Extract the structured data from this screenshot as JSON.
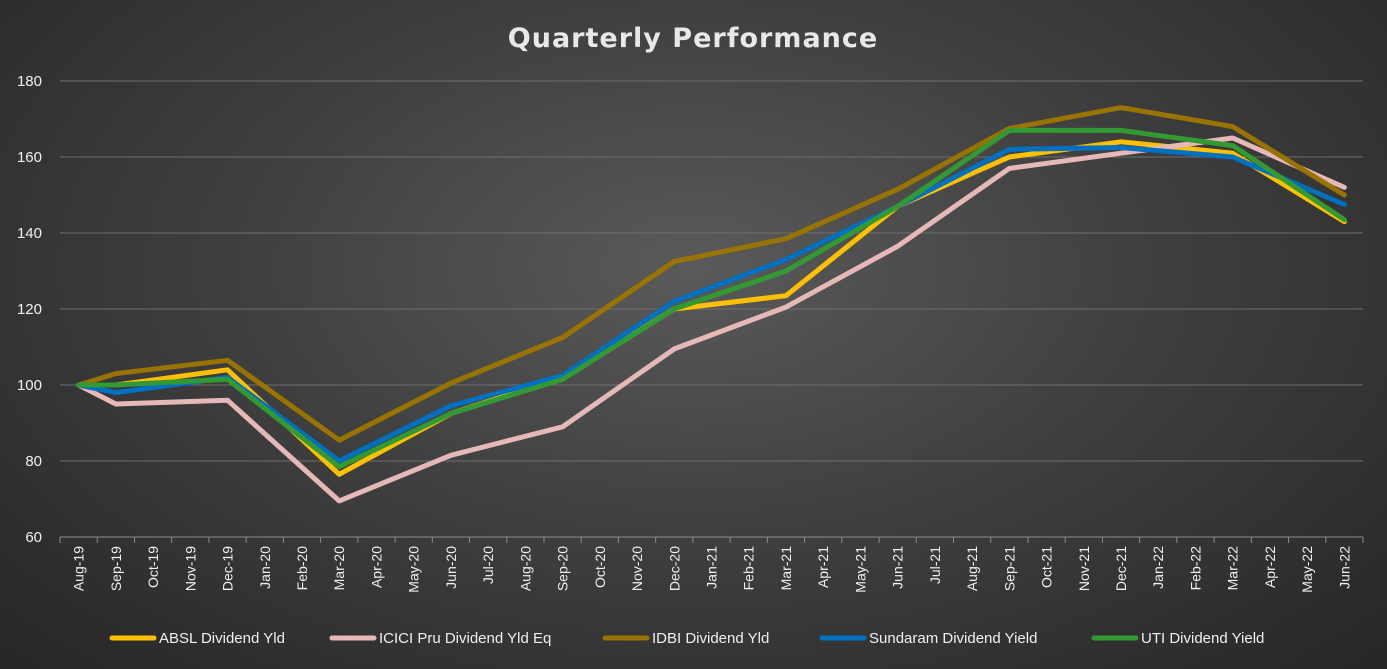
{
  "chart_data": {
    "type": "line",
    "title": "Quarterly Performance",
    "xlabel": "",
    "ylabel": "",
    "ylim": [
      60,
      180
    ],
    "yticks": [
      "60",
      "80",
      "100",
      "120",
      "140",
      "160",
      "180"
    ],
    "grid": true,
    "legend_position": "bottom",
    "categories": [
      "Aug-19",
      "Sep-19",
      "Oct-19",
      "Nov-19",
      "Dec-19",
      "Jan-20",
      "Feb-20",
      "Mar-20",
      "Apr-20",
      "May-20",
      "Jun-20",
      "Jul-20",
      "Aug-20",
      "Sep-20",
      "Oct-20",
      "Nov-20",
      "Dec-20",
      "Jan-21",
      "Feb-21",
      "Mar-21",
      "Apr-21",
      "May-21",
      "Jun-21",
      "Jul-21",
      "Aug-21",
      "Sep-21",
      "Oct-21",
      "Nov-21",
      "Dec-21",
      "Jan-22",
      "Feb-22",
      "Mar-22",
      "Apr-22",
      "May-22",
      "Jun-22"
    ],
    "series": [
      {
        "name": "ABSL Dividend Yld",
        "color": "#FFC000",
        "x": [
          "Aug-19",
          "Sep-19",
          "Dec-19",
          "Mar-20",
          "Jun-20",
          "Sep-20",
          "Dec-20",
          "Mar-21",
          "Jun-21",
          "Sep-21",
          "Dec-21",
          "Mar-22",
          "Jun-22"
        ],
        "values": [
          100,
          100,
          104,
          76.5,
          92.5,
          102,
          120,
          123.5,
          147,
          160,
          164,
          161,
          143
        ]
      },
      {
        "name": "ICICI Pru Dividend Yld Eq",
        "color": "#E6B9B8",
        "x": [
          "Aug-19",
          "Sep-19",
          "Dec-19",
          "Mar-20",
          "Jun-20",
          "Sep-20",
          "Dec-20",
          "Mar-21",
          "Jun-21",
          "Sep-21",
          "Dec-21",
          "Mar-22",
          "Jun-22"
        ],
        "values": [
          100,
          95,
          96,
          69.5,
          81.5,
          89,
          109.5,
          120.5,
          136.5,
          157,
          161,
          165,
          152
        ]
      },
      {
        "name": "IDBI Dividend Yld",
        "color": "#997300",
        "x": [
          "Aug-19",
          "Sep-19",
          "Dec-19",
          "Mar-20",
          "Jun-20",
          "Sep-20",
          "Dec-20",
          "Mar-21",
          "Jun-21",
          "Sep-21",
          "Dec-21",
          "Mar-22",
          "Jun-22"
        ],
        "values": [
          100,
          103,
          106.5,
          85.5,
          100.5,
          112.5,
          132.5,
          138.5,
          151.5,
          167.5,
          173,
          168,
          150
        ]
      },
      {
        "name": "Sundaram Dividend Yield",
        "color": "#0070C0",
        "x": [
          "Aug-19",
          "Sep-19",
          "Dec-19",
          "Mar-20",
          "Jun-20",
          "Sep-20",
          "Dec-20",
          "Mar-21",
          "Jun-21",
          "Sep-21",
          "Dec-21",
          "Mar-22",
          "Jun-22"
        ],
        "values": [
          100,
          98,
          102,
          80,
          94.5,
          102.5,
          122,
          133,
          147,
          162,
          162.5,
          160,
          147.5
        ]
      },
      {
        "name": "UTI Dividend Yield",
        "color": "#339933",
        "x": [
          "Aug-19",
          "Sep-19",
          "Dec-19",
          "Mar-20",
          "Jun-20",
          "Sep-20",
          "Dec-20",
          "Mar-21",
          "Jun-21",
          "Sep-21",
          "Dec-21",
          "Mar-22",
          "Jun-22"
        ],
        "values": [
          100,
          100,
          101.5,
          78.5,
          92.5,
          101.5,
          120,
          130,
          147,
          167,
          167,
          163,
          143.5
        ]
      }
    ]
  }
}
